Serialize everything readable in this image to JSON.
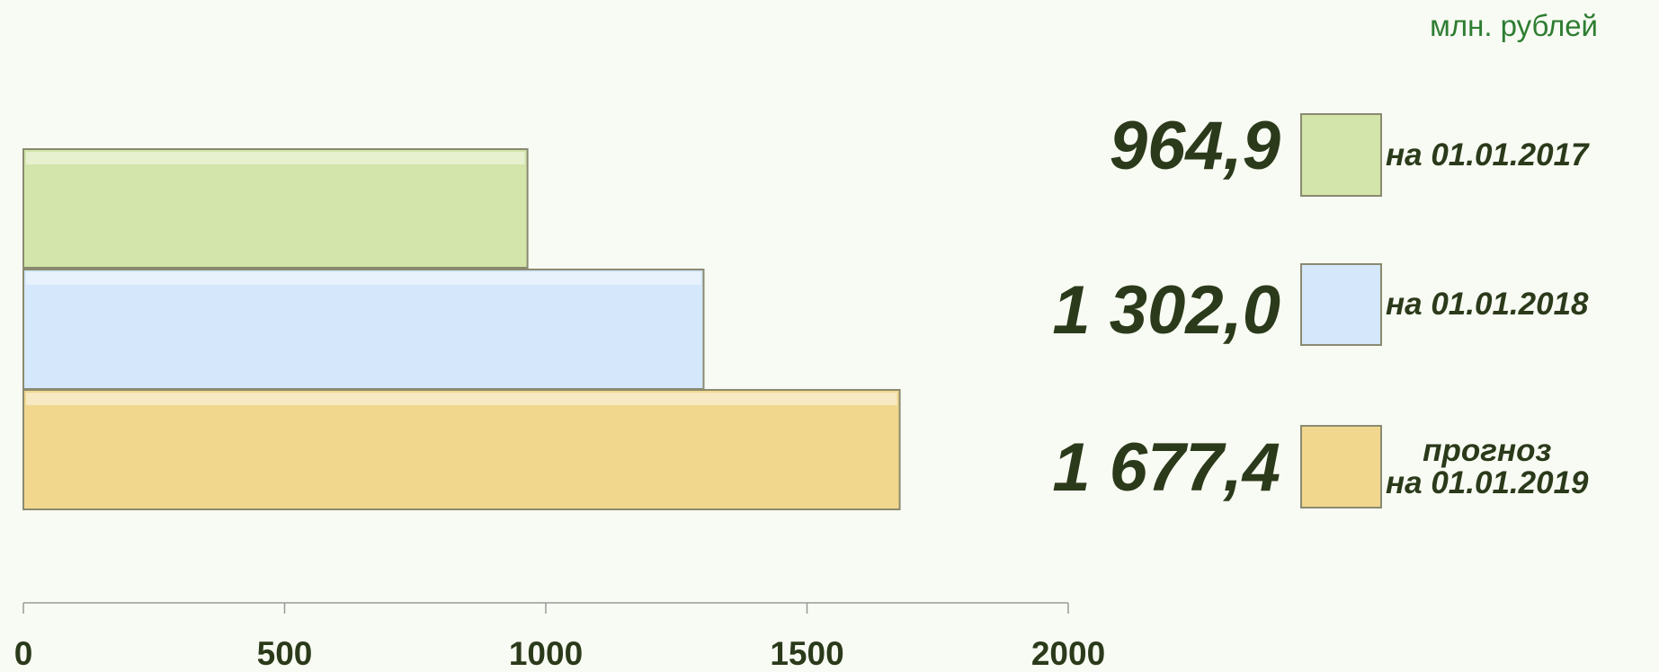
{
  "chart_data": {
    "type": "bar",
    "orientation": "horizontal",
    "unit": "млн. рублей",
    "series": [
      {
        "name": "на 01.01.2017",
        "color": "#d3e5aa",
        "values": [
          964.9
        ],
        "value_labels": [
          "964,9"
        ]
      },
      {
        "name": "на 01.01.2018",
        "color": "#d5e7fb",
        "values": [
          1302.0
        ],
        "value_labels": [
          "1 302,0"
        ]
      },
      {
        "name": "прогноз\nна 01.01.2019",
        "color": "#f1d78e",
        "values": [
          1677.4
        ],
        "value_labels": [
          "1 677,4"
        ]
      }
    ],
    "xlim": [
      0,
      2000
    ],
    "xticks": [
      0,
      500,
      1000,
      1500,
      2000
    ]
  }
}
